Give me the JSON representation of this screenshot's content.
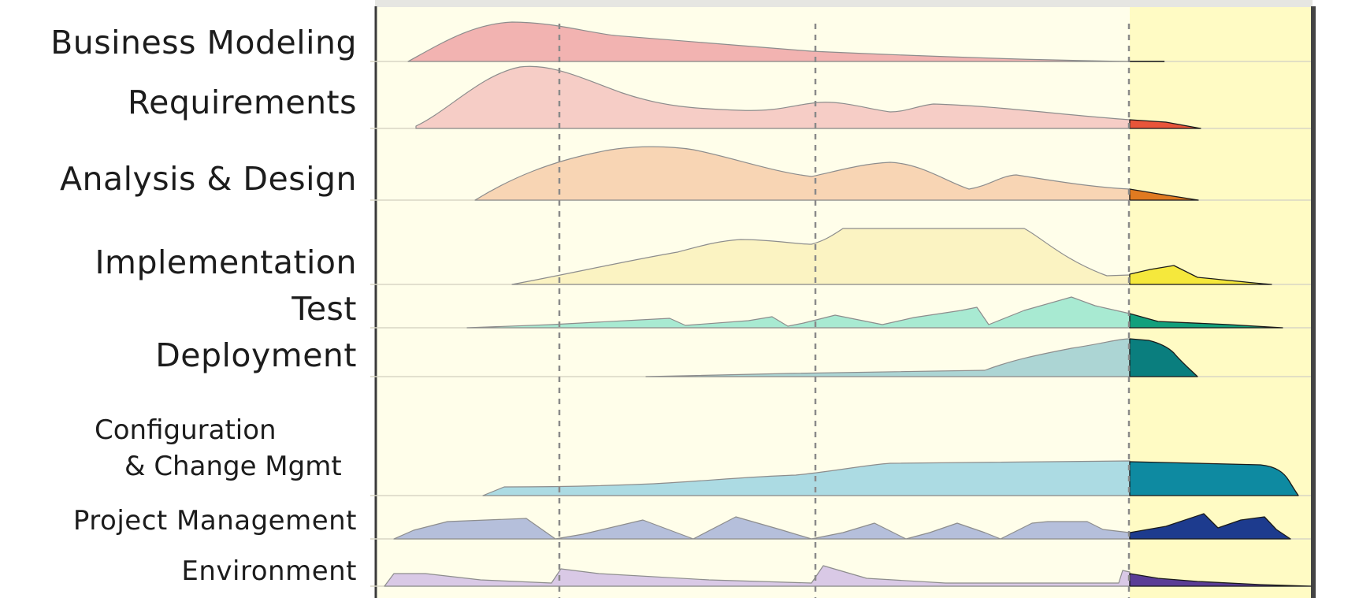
{
  "workflows": [
    {
      "label": "Business Modeling",
      "color": "#f2b3b1",
      "trans_color": null
    },
    {
      "label": "Requirements",
      "color": "#f6cdc6",
      "trans_color": "#e8553a"
    },
    {
      "label": "Analysis & Design",
      "color": "#f8d5b4",
      "trans_color": "#e07a20"
    },
    {
      "label": "Implementation",
      "color": "#fbf3c2",
      "trans_color": "#f5e83c"
    },
    {
      "label": "Test",
      "color": "#a8ead2",
      "trans_color": "#12a07c"
    },
    {
      "label": "Deployment",
      "color": "#acd5d4",
      "trans_color": "#0a7e7e"
    },
    {
      "label_lines": [
        "Configuration",
        "& Change Mgmt"
      ],
      "color": "#acdbe3",
      "trans_color": "#0e8aa1"
    },
    {
      "label": "Project Management",
      "color": "#b5bfdb",
      "trans_color": "#1d3b8e"
    },
    {
      "label": "Environment",
      "color": "#d9c9e6",
      "trans_color": "#5a3d96"
    }
  ],
  "colors": {
    "background_main": "#fffeea",
    "background_transition": "#fffbc4",
    "divider": "#8a8a8a",
    "axis": "#3a3a3a"
  }
}
